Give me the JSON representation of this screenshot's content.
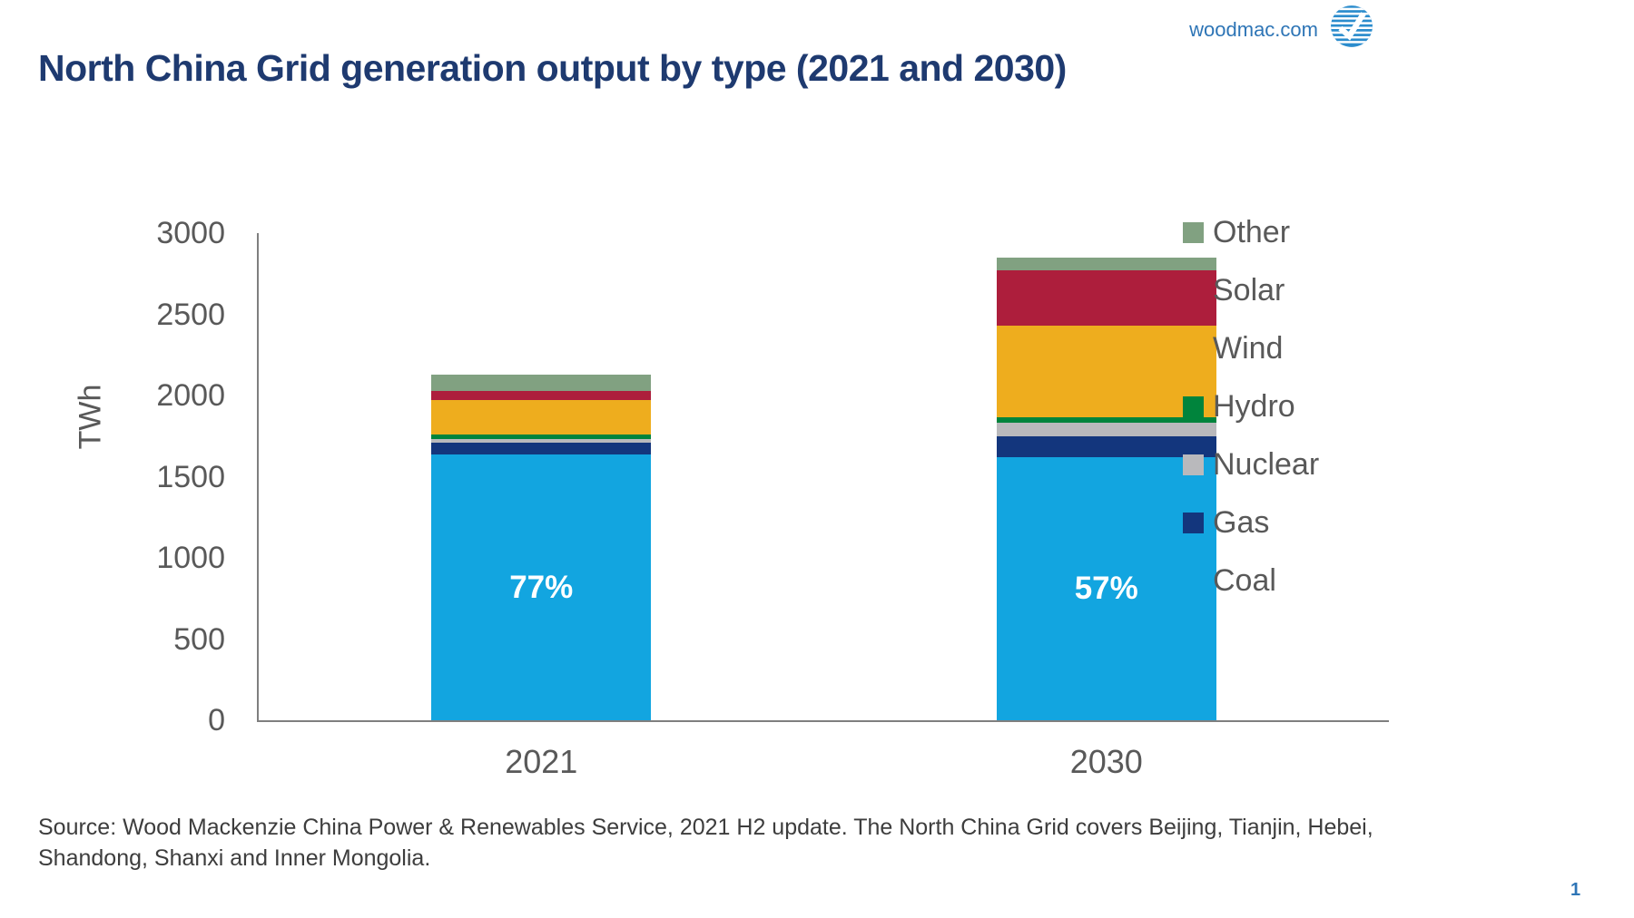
{
  "header": {
    "title": "North China Grid generation output by type (2021 and 2030)",
    "website": "woodmac.com",
    "logo_icon": "wood-mackenzie-logo"
  },
  "chart_data": {
    "type": "bar",
    "stacked": true,
    "title": "North China Grid generation output by type (2021 and 2030)",
    "xlabel": "",
    "ylabel": "TWh",
    "ylim": [
      0,
      3000
    ],
    "ytick_step": 500,
    "grid": false,
    "legend_position": "right",
    "categories": [
      "2021",
      "2030"
    ],
    "series": [
      {
        "name": "Coal",
        "color": "#12a5e0",
        "values": [
          1635,
          1620
        ]
      },
      {
        "name": "Gas",
        "color": "#13367d",
        "values": [
          75,
          130
        ]
      },
      {
        "name": "Nuclear",
        "color": "#b9b9bc",
        "values": [
          20,
          85
        ]
      },
      {
        "name": "Hydro",
        "color": "#00843c",
        "values": [
          30,
          30
        ]
      },
      {
        "name": "Wind",
        "color": "#eead1e",
        "values": [
          212,
          565
        ]
      },
      {
        "name": "Solar",
        "color": "#ad1e3c",
        "values": [
          56,
          340
        ]
      },
      {
        "name": "Other",
        "color": "#81a181",
        "values": [
          100,
          80
        ]
      }
    ],
    "legend_order": [
      "Other",
      "Solar",
      "Wind",
      "Hydro",
      "Nuclear",
      "Gas",
      "Coal"
    ],
    "bar_labels": [
      {
        "category": "2021",
        "series": "Coal",
        "text": "77%"
      },
      {
        "category": "2030",
        "series": "Coal",
        "text": "57%"
      }
    ]
  },
  "footer": {
    "source_text": "Source: Wood Mackenzie China Power & Renewables Service, 2021 H2 update. The North China Grid covers Beijing, Tianjin, Hebei, Shandong, Shanxi and Inner Mongolia.",
    "page_number": "1"
  },
  "colors": {
    "title_navy": "#1e3a70",
    "axis_text_gray": "#595959",
    "axis_line_gray": "#7f7f7f",
    "link_blue": "#2e75b6",
    "logo_blue": "#2b8ccd",
    "source_text_gray": "#3d3d3d",
    "bar_label_white": "#ffffff"
  }
}
